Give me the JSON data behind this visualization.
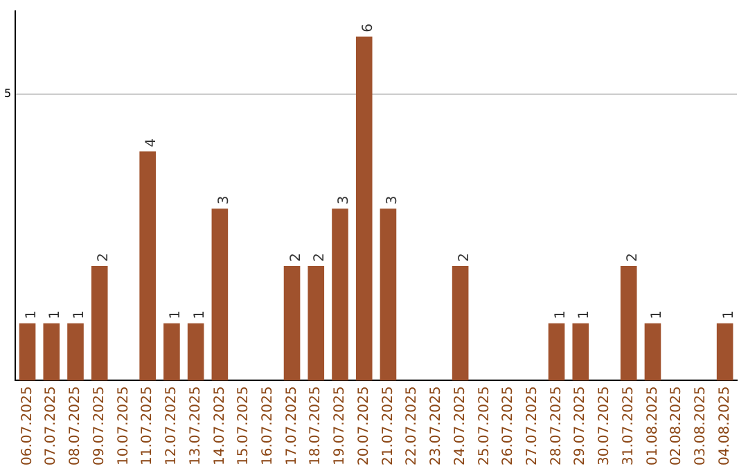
{
  "chart_data": {
    "type": "bar",
    "categories": [
      "06.07.2025",
      "07.07.2025",
      "08.07.2025",
      "09.07.2025",
      "10.07.2025",
      "11.07.2025",
      "12.07.2025",
      "13.07.2025",
      "14.07.2025",
      "15.07.2025",
      "16.07.2025",
      "17.07.2025",
      "18.07.2025",
      "19.07.2025",
      "20.07.2025",
      "21.07.2025",
      "22.07.2025",
      "23.07.2025",
      "24.07.2025",
      "25.07.2025",
      "26.07.2025",
      "27.07.2025",
      "28.07.2025",
      "29.07.2025",
      "30.07.2025",
      "31.07.2025",
      "01.08.2025",
      "02.08.2025",
      "03.08.2025",
      "04.08.2025"
    ],
    "values": [
      1,
      1,
      1,
      2,
      null,
      4,
      1,
      1,
      3,
      null,
      null,
      2,
      2,
      3,
      6,
      3,
      null,
      null,
      2,
      null,
      null,
      null,
      1,
      1,
      null,
      2,
      1,
      null,
      null,
      1
    ],
    "color": "#a0522d",
    "ylim": [
      0,
      6.45
    ],
    "yticks": [
      5
    ],
    "grid": "y",
    "data_labels": true,
    "legend": false
  }
}
